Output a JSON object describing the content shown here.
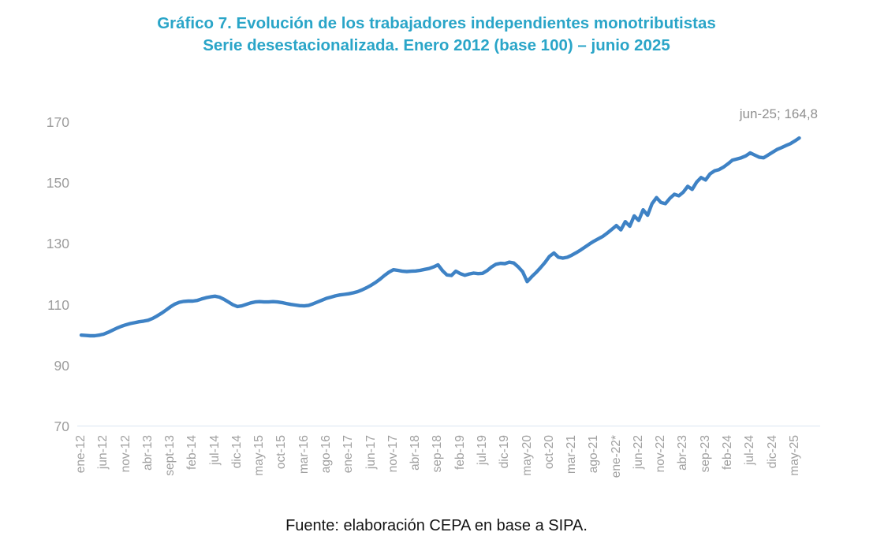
{
  "title": {
    "line1": "Gráfico 7. Evolución de los trabajadores independientes monotributistas",
    "line2": "Serie desestacionalizada. Enero 2012 (base 100) – junio 2025"
  },
  "footer": {
    "text": "Fuente: elaboración CEPA en base a SIPA."
  },
  "chart_data": {
    "type": "line",
    "title": "Gráfico 7. Evolución de los trabajadores independientes monotributistas. Serie desestacionalizada. Enero 2012 (base 100) – junio 2025",
    "annotation": "jun-25; 164,8",
    "line_color": "#3E82C5",
    "axis_text_color": "#9d9d9d",
    "ylim": [
      70,
      170
    ],
    "yticks": [
      70,
      90,
      110,
      130,
      150,
      170
    ],
    "grid": "baseline-only",
    "legend": "none",
    "x_tick_interval_months": 5,
    "x_tick_labels": [
      "ene-12",
      "jun-12",
      "nov-12",
      "abr-13",
      "sept-13",
      "feb-14",
      "jul-14",
      "dic-14",
      "may-15",
      "oct-15",
      "mar-16",
      "ago-16",
      "ene-17",
      "jun-17",
      "nov-17",
      "abr-18",
      "sep-18",
      "feb-19",
      "jul-19",
      "dic-19",
      "may-20",
      "oct-20",
      "mar-21",
      "ago-21",
      "ene-22*",
      "jun-22",
      "nov-22",
      "abr-23",
      "sep-23",
      "feb-24",
      "jul-24",
      "dic-24",
      "may-25"
    ],
    "x_range": [
      "ene-12",
      "jun-25"
    ],
    "monthly_values": [
      100.0,
      99.9,
      99.8,
      99.8,
      100.0,
      100.3,
      100.9,
      101.6,
      102.3,
      102.9,
      103.4,
      103.8,
      104.1,
      104.4,
      104.6,
      104.9,
      105.5,
      106.3,
      107.2,
      108.2,
      109.3,
      110.2,
      110.8,
      111.1,
      111.2,
      111.2,
      111.4,
      111.9,
      112.3,
      112.6,
      112.8,
      112.5,
      111.8,
      110.9,
      110.0,
      109.4,
      109.6,
      110.1,
      110.6,
      110.9,
      111.0,
      110.9,
      110.9,
      111.0,
      110.9,
      110.7,
      110.4,
      110.1,
      109.9,
      109.7,
      109.6,
      109.8,
      110.3,
      110.9,
      111.5,
      112.1,
      112.5,
      112.9,
      113.2,
      113.4,
      113.6,
      113.9,
      114.3,
      114.9,
      115.6,
      116.4,
      117.3,
      118.4,
      119.6,
      120.7,
      121.5,
      121.3,
      121.0,
      120.9,
      121.0,
      121.1,
      121.3,
      121.6,
      121.9,
      122.4,
      123.1,
      121.2,
      119.8,
      119.6,
      121.0,
      120.2,
      119.7,
      120.1,
      120.4,
      120.2,
      120.3,
      121.2,
      122.4,
      123.3,
      123.6,
      123.5,
      124.0,
      123.7,
      122.4,
      120.8,
      117.6,
      119.2,
      120.6,
      122.2,
      123.9,
      125.9,
      127.0,
      125.6,
      125.3,
      125.6,
      126.3,
      127.1,
      128.0,
      129.0,
      130.0,
      130.9,
      131.7,
      132.5,
      133.6,
      134.8,
      136.0,
      134.6,
      137.3,
      135.8,
      139.2,
      137.7,
      141.2,
      139.4,
      143.2,
      145.2,
      143.6,
      143.2,
      145.0,
      146.3,
      145.8,
      147.0,
      148.9,
      147.9,
      150.3,
      151.8,
      151.0,
      153.0,
      154.0,
      154.4,
      155.2,
      156.3,
      157.5,
      157.9,
      158.3,
      158.9,
      159.9,
      159.2,
      158.5,
      158.3,
      159.2,
      160.1,
      161.0,
      161.6,
      162.3,
      162.9,
      163.8,
      164.8
    ],
    "last_point": {
      "label": "jun-25",
      "value": 164.8
    }
  }
}
